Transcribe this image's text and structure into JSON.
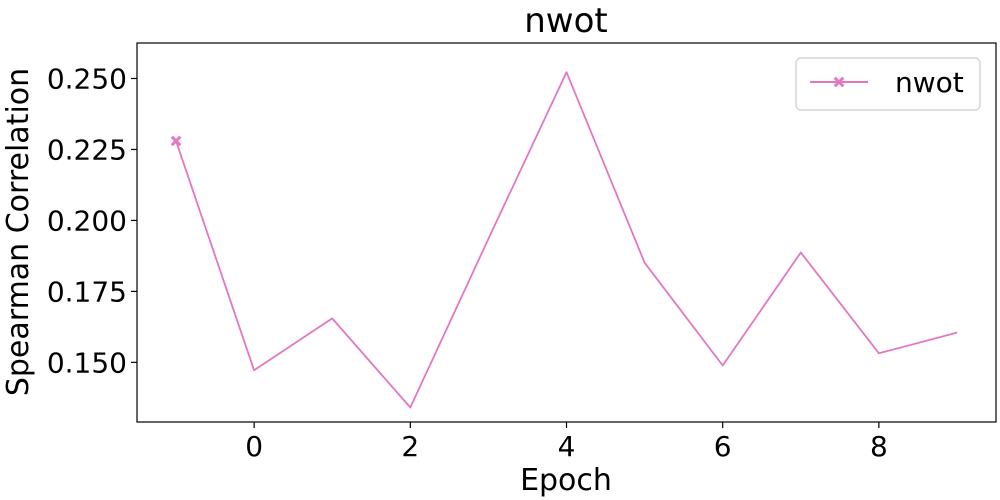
{
  "chart_data": {
    "type": "line",
    "title": "nwot",
    "xlabel": "Epoch",
    "ylabel": "Spearman Correlation",
    "xlim": [
      -1.5,
      9.5
    ],
    "ylim": [
      0.129,
      0.2625
    ],
    "xticks": [
      0,
      2,
      4,
      6,
      8
    ],
    "xtick_labels": [
      "0",
      "2",
      "4",
      "6",
      "8"
    ],
    "yticks": [
      0.15,
      0.175,
      0.2,
      0.225,
      0.25
    ],
    "ytick_labels": [
      "0.150",
      "0.175",
      "0.200",
      "0.225",
      "0.250"
    ],
    "grid": false,
    "legend_position": "top-right",
    "series": [
      {
        "name": "nwot",
        "color": "#e377c2",
        "marker": "x-filled",
        "marker_on_first_point_only": true,
        "x": [
          -1,
          0,
          1,
          2,
          3,
          4,
          5,
          6,
          7,
          8,
          9
        ],
        "values": [
          0.228,
          0.1472,
          0.1655,
          0.1341,
          0.1935,
          0.2522,
          0.1851,
          0.1489,
          0.1887,
          0.1532,
          0.1605
        ]
      }
    ]
  }
}
